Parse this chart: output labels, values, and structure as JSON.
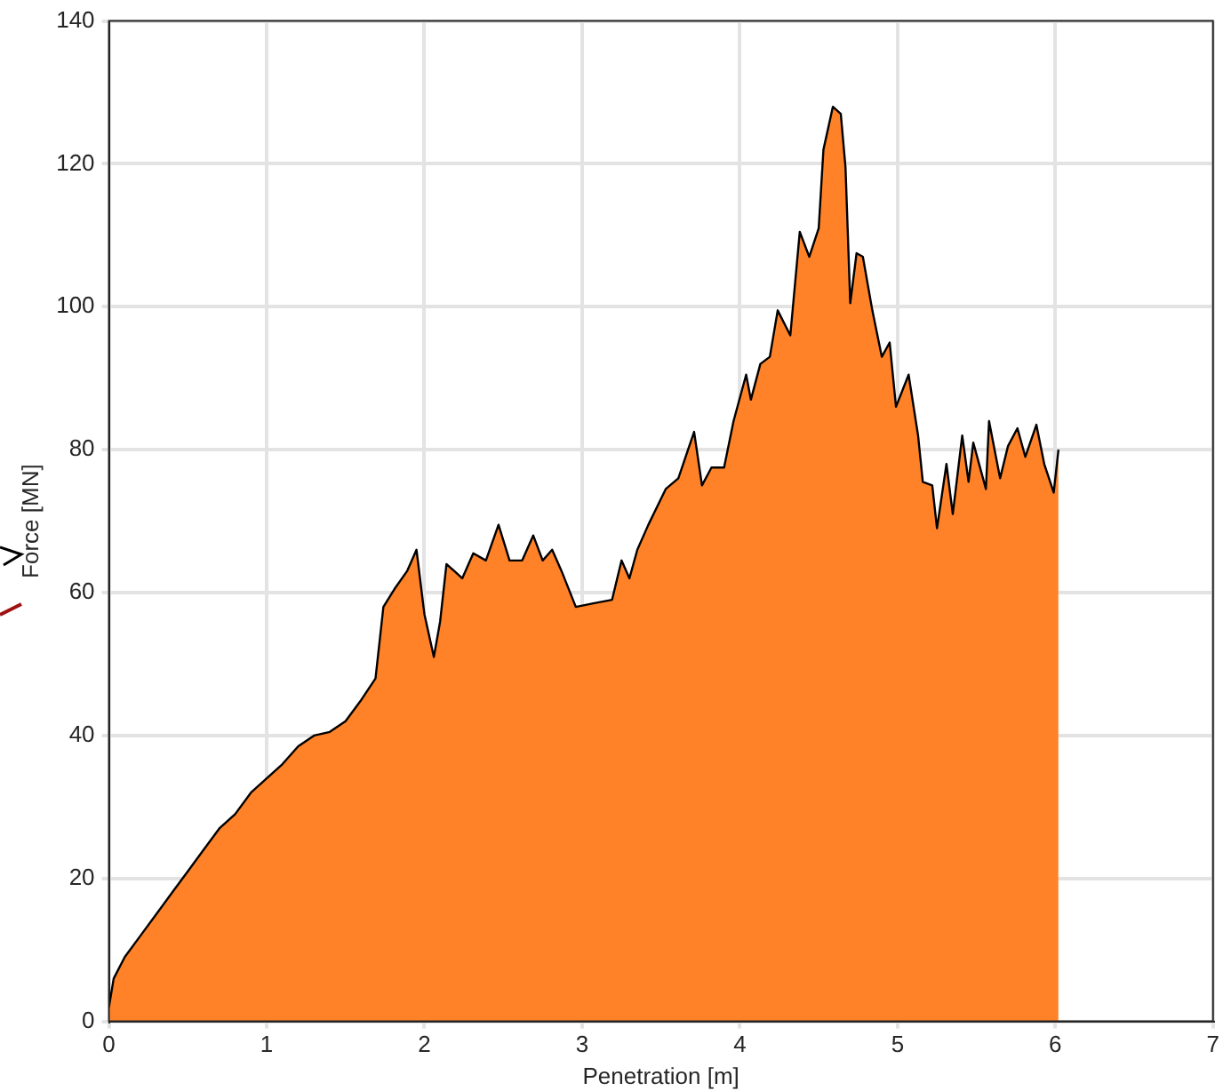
{
  "chart_data": {
    "type": "area",
    "xlabel": "Penetration [m]",
    "ylabel": "Force [MN]",
    "x": [
      0,
      0.03,
      0.1,
      0.2,
      0.3,
      0.4,
      0.5,
      0.6,
      0.7,
      0.8,
      0.9,
      1.0,
      1.1,
      1.2,
      1.3,
      1.4,
      1.5,
      1.6,
      1.69,
      1.74,
      1.81,
      1.89,
      1.95,
      2.0,
      2.06,
      2.1,
      2.14,
      2.24,
      2.31,
      2.39,
      2.47,
      2.54,
      2.62,
      2.69,
      2.75,
      2.81,
      2.87,
      2.96,
      3.07,
      3.19,
      3.25,
      3.3,
      3.35,
      3.42,
      3.53,
      3.61,
      3.71,
      3.76,
      3.82,
      3.9,
      3.96,
      4.04,
      4.07,
      4.13,
      4.19,
      4.24,
      4.32,
      4.38,
      4.44,
      4.5,
      4.53,
      4.59,
      4.64,
      4.67,
      4.7,
      4.74,
      4.78,
      4.84,
      4.9,
      4.95,
      4.99,
      5.07,
      5.13,
      5.16,
      5.22,
      5.25,
      5.31,
      5.35,
      5.41,
      5.45,
      5.48,
      5.56,
      5.58,
      5.65,
      5.7,
      5.76,
      5.81,
      5.88,
      5.93,
      5.99,
      6.02
    ],
    "series": [
      {
        "color": "#ff8228",
        "values": [
          2,
          6,
          9,
          12,
          15,
          18,
          21,
          24,
          27,
          29,
          32,
          34,
          36,
          38.5,
          40,
          40.5,
          42,
          45,
          48,
          58,
          60.5,
          63,
          66,
          57,
          51,
          56,
          64,
          62,
          65.5,
          64.5,
          69.5,
          64.5,
          64.5,
          68,
          64.5,
          66,
          63,
          58,
          58.5,
          59,
          64.5,
          62,
          66,
          69.5,
          74.5,
          76,
          82.5,
          75,
          77.5,
          77.5,
          84,
          90.5,
          87,
          92,
          93,
          99.5,
          96,
          110.5,
          107,
          111,
          122,
          128,
          127,
          119.5,
          100.5,
          107.5,
          107,
          99.5,
          93,
          95,
          86,
          90.5,
          82,
          75.5,
          75,
          69,
          78,
          71,
          82,
          75.5,
          81,
          74.5,
          84,
          76,
          80.5,
          83,
          79,
          83.5,
          78,
          74,
          80
        ]
      }
    ],
    "xlim": [
      0,
      7
    ],
    "xticks": [
      0,
      1,
      2,
      3,
      4,
      5,
      6,
      7
    ],
    "ylim": [
      0,
      140
    ],
    "yticks": [
      0,
      20,
      40,
      60,
      80,
      100,
      120,
      140
    ],
    "grid": true,
    "legend": false
  }
}
